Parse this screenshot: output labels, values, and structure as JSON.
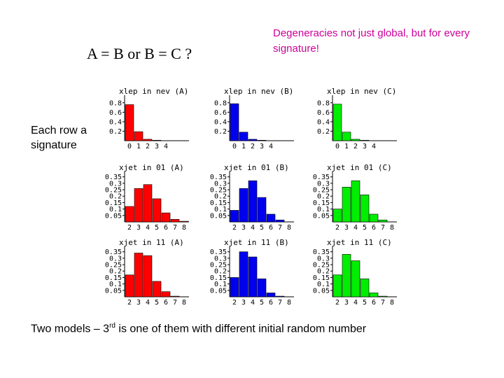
{
  "slide": {
    "equation": "A = B or B = C ?",
    "note": "Degeneracies not just global, but for every signature!",
    "row_label": "Each row a signature",
    "caption_pre": "Two models – 3",
    "caption_sup": "rd",
    "caption_post": " is one of them with different initial random number"
  },
  "colors": {
    "note": "#cc0099",
    "A": "#ff0000",
    "B": "#0000ee",
    "C": "#00ee00"
  },
  "chart_data": [
    {
      "type": "bar",
      "title": "xlep in nev (A)",
      "series_color": "A",
      "categories": [
        "0",
        "1",
        "2",
        "3",
        "4"
      ],
      "values": [
        0.76,
        0.19,
        0.03,
        0.01,
        0.0
      ],
      "ylim": [
        0,
        0.9
      ],
      "yticks": [
        "0.8",
        "0.6",
        "0.4",
        "0.2"
      ]
    },
    {
      "type": "bar",
      "title": "xlep in nev (B)",
      "series_color": "B",
      "categories": [
        "0",
        "1",
        "2",
        "3",
        "4"
      ],
      "values": [
        0.78,
        0.18,
        0.03,
        0.01,
        0.0
      ],
      "ylim": [
        0,
        0.9
      ],
      "yticks": [
        "0.8",
        "0.6",
        "0.4",
        "0.2"
      ]
    },
    {
      "type": "bar",
      "title": "xlep in nev (C)",
      "series_color": "C",
      "categories": [
        "0",
        "1",
        "2",
        "3",
        "4"
      ],
      "values": [
        0.77,
        0.18,
        0.03,
        0.01,
        0.0
      ],
      "ylim": [
        0,
        0.9
      ],
      "yticks": [
        "0.8",
        "0.6",
        "0.4",
        "0.2"
      ]
    },
    {
      "type": "bar",
      "title": "xjet in 01 (A)",
      "series_color": "A",
      "categories": [
        "2",
        "3",
        "4",
        "5",
        "6",
        "7",
        "8"
      ],
      "values": [
        0.12,
        0.26,
        0.29,
        0.18,
        0.07,
        0.02,
        0.005
      ],
      "ylim": [
        0,
        0.37
      ],
      "yticks": [
        "0.35",
        "0.3",
        "0.25",
        "0.2",
        "0.15",
        "0.1",
        "0.05"
      ]
    },
    {
      "type": "bar",
      "title": "xjet in 01 (B)",
      "series_color": "B",
      "categories": [
        "2",
        "3",
        "4",
        "5",
        "6",
        "7",
        "8"
      ],
      "values": [
        0.09,
        0.26,
        0.32,
        0.19,
        0.06,
        0.015,
        0.0
      ],
      "ylim": [
        0,
        0.37
      ],
      "yticks": [
        "0.35",
        "0.3",
        "0.25",
        "0.2",
        "0.15",
        "0.1",
        "0.05"
      ]
    },
    {
      "type": "bar",
      "title": "xjet in 01 (C)",
      "series_color": "C",
      "categories": [
        "2",
        "3",
        "4",
        "5",
        "6",
        "7",
        "8"
      ],
      "values": [
        0.1,
        0.27,
        0.32,
        0.21,
        0.06,
        0.015,
        0.0
      ],
      "ylim": [
        0,
        0.37
      ],
      "yticks": [
        "0.35",
        "0.3",
        "0.25",
        "0.2",
        "0.15",
        "0.1",
        "0.05"
      ]
    },
    {
      "type": "bar",
      "title": "xjet in 11 (A)",
      "series_color": "A",
      "categories": [
        "2",
        "3",
        "4",
        "5",
        "6",
        "7",
        "8"
      ],
      "values": [
        0.17,
        0.34,
        0.32,
        0.12,
        0.04,
        0.005,
        0.0
      ],
      "ylim": [
        0,
        0.37
      ],
      "yticks": [
        "0.35",
        "0.3",
        "0.25",
        "0.2",
        "0.15",
        "0.1",
        "0.05"
      ]
    },
    {
      "type": "bar",
      "title": "xjet in 11 (B)",
      "series_color": "B",
      "categories": [
        "2",
        "3",
        "4",
        "5",
        "6",
        "7",
        "8"
      ],
      "values": [
        0.15,
        0.35,
        0.31,
        0.14,
        0.03,
        0.005,
        0.0
      ],
      "ylim": [
        0,
        0.37
      ],
      "yticks": [
        "0.35",
        "0.3",
        "0.25",
        "0.2",
        "0.15",
        "0.1",
        "0.05"
      ]
    },
    {
      "type": "bar",
      "title": "xjet in 11 (C)",
      "series_color": "C",
      "categories": [
        "2",
        "3",
        "4",
        "5",
        "6",
        "7",
        "8"
      ],
      "values": [
        0.17,
        0.33,
        0.28,
        0.14,
        0.03,
        0.005,
        0.0
      ],
      "ylim": [
        0,
        0.37
      ],
      "yticks": [
        "0.35",
        "0.3",
        "0.25",
        "0.2",
        "0.15",
        "0.1",
        "0.05"
      ]
    }
  ]
}
